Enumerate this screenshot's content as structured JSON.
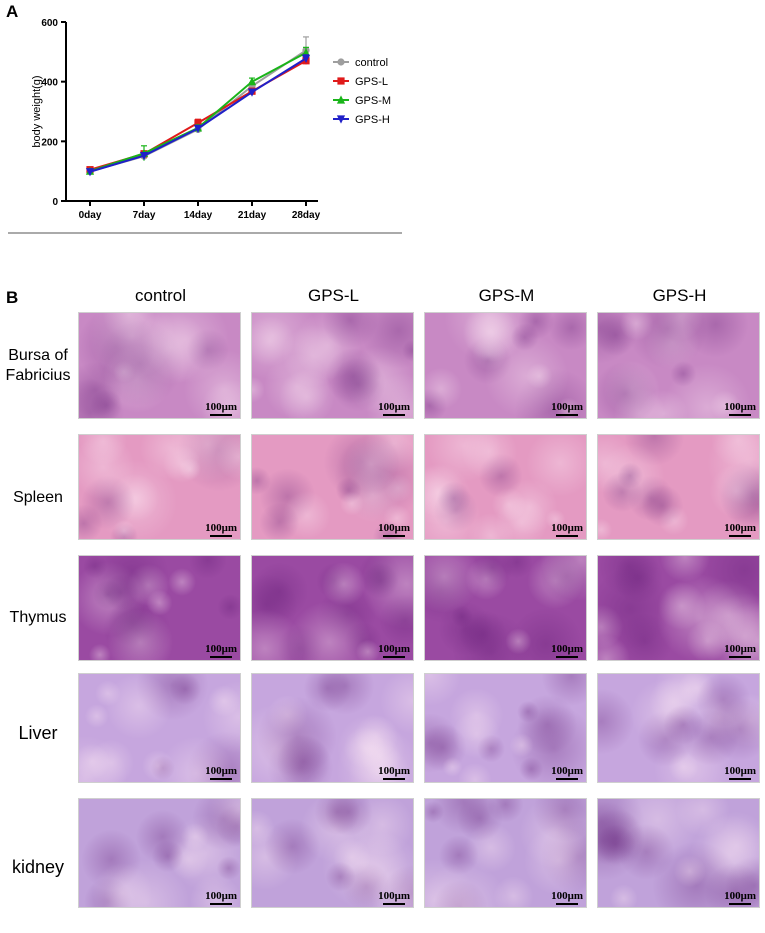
{
  "panel_a": {
    "label": "A",
    "chart_data": {
      "type": "line",
      "title": "",
      "xlabel": "",
      "ylabel": "body weight(g)",
      "categories": [
        "0day",
        "7day",
        "14day",
        "21day",
        "28day"
      ],
      "y_ticks": [
        "0",
        "200",
        "400",
        "600"
      ],
      "ylim": [
        0,
        600
      ],
      "legend_position": "right",
      "series": [
        {
          "name": "control",
          "color": "#9e9e9e",
          "marker": "circle",
          "values": [
            99,
            150,
            240,
            385,
            505
          ],
          "errors": [
            8,
            8,
            10,
            12,
            45
          ]
        },
        {
          "name": "GPS-L",
          "color": "#e01a1a",
          "marker": "square",
          "values": [
            105,
            158,
            262,
            368,
            470
          ],
          "errors": [
            8,
            10,
            12,
            10,
            12
          ]
        },
        {
          "name": "GPS-M",
          "color": "#19b419",
          "marker": "triangle-up",
          "values": [
            100,
            160,
            245,
            400,
            497
          ],
          "errors": [
            8,
            25,
            10,
            12,
            18
          ]
        },
        {
          "name": "GPS-H",
          "color": "#2020c8",
          "marker": "triangle-down",
          "values": [
            98,
            152,
            243,
            365,
            478
          ],
          "errors": [
            6,
            8,
            10,
            10,
            12
          ]
        }
      ]
    }
  },
  "panel_b": {
    "label": "B",
    "columns": [
      "control",
      "GPS-L",
      "GPS-M",
      "GPS-H"
    ],
    "rows": [
      {
        "label": "Bursa of\nFabricius",
        "tissue": "bursa"
      },
      {
        "label": "Spleen",
        "tissue": "spleen"
      },
      {
        "label": "Thymus",
        "tissue": "thymus"
      },
      {
        "label": "Liver",
        "tissue": "liver"
      },
      {
        "label": "kidney",
        "tissue": "kidney"
      }
    ],
    "scale_bar": "100μm",
    "colors": {
      "bursa": "#c889c4",
      "spleen": "#e49ac2",
      "thymus": "#9a4aa2",
      "liver": "#c6a6de",
      "kidney": "#c0a2da",
      "border": "#cfcfcf"
    }
  }
}
